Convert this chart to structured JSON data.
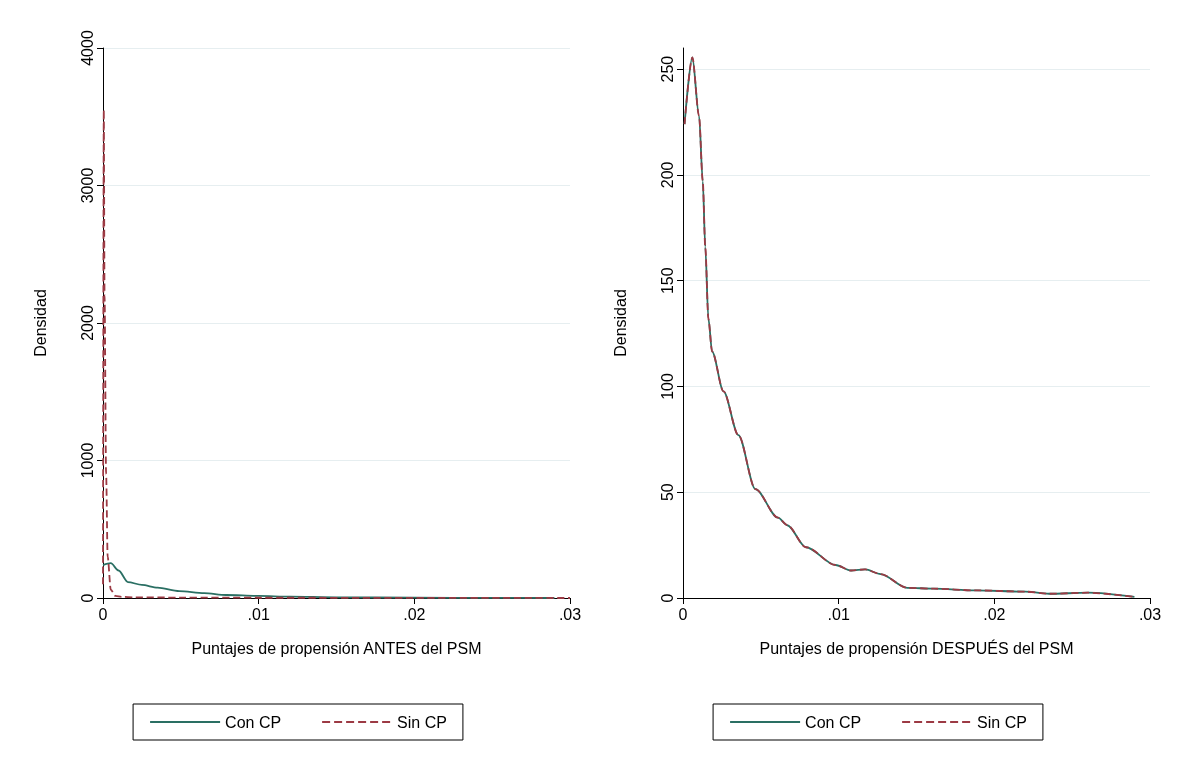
{
  "chart_data": [
    {
      "type": "line",
      "xlabel": "Puntajes de propensión ANTES del PSM",
      "ylabel": "Densidad",
      "xlim": [
        0,
        0.03
      ],
      "xticks": [
        {
          "value": 0,
          "label": "0"
        },
        {
          "value": 0.01,
          "label": ".01"
        },
        {
          "value": 0.02,
          "label": ".02"
        },
        {
          "value": 0.03,
          "label": ".03"
        }
      ],
      "ylim": [
        0,
        4000
      ],
      "yticks": [
        0,
        1000,
        2000,
        3000,
        4000
      ],
      "grid": "y",
      "legend": "bottom",
      "series": [
        {
          "name": "Con CP",
          "color": "#2a6f63",
          "line_style": "solid",
          "x": [
            0,
            0.0005,
            0.001,
            0.0016,
            0.0025,
            0.0035,
            0.0049,
            0.0065,
            0.0079,
            0.01,
            0.012,
            0.015,
            0.02,
            0.025,
            0.029
          ],
          "values": [
            239,
            253,
            200,
            116,
            95,
            75,
            50,
            35,
            22,
            15,
            10,
            5,
            2,
            1,
            0
          ]
        },
        {
          "name": "Sin CP",
          "color": "#9c3a44",
          "line_style": "dashed",
          "x": [
            0,
            5e-05,
            0.0001,
            0.0002,
            0.0003,
            0.0005,
            0.0008,
            0.0012,
            0.002,
            0.005,
            0.01,
            0.02,
            0.03
          ],
          "values": [
            100,
            3550,
            2200,
            900,
            300,
            60,
            15,
            8,
            5,
            3,
            2,
            1,
            0
          ]
        }
      ]
    },
    {
      "type": "line",
      "xlabel": "Puntajes de propensión DESPUÉS del PSM",
      "ylabel": "Densidad",
      "xlim": [
        0,
        0.03
      ],
      "xticks": [
        {
          "value": 0,
          "label": "0"
        },
        {
          "value": 0.01,
          "label": ".01"
        },
        {
          "value": 0.02,
          "label": ".02"
        },
        {
          "value": 0.03,
          "label": ".03"
        }
      ],
      "ylim": [
        0,
        260
      ],
      "yticks": [
        0,
        50,
        100,
        150,
        200,
        250
      ],
      "grid": "y",
      "legend": "bottom",
      "series": [
        {
          "name": "Con CP",
          "color": "#2a6f63",
          "line_style": "solid",
          "x": [
            0.0001,
            0.0006,
            0.00103,
            0.00127,
            0.00143,
            0.00163,
            0.00187,
            0.0026,
            0.00356,
            0.00465,
            0.0061,
            0.0067,
            0.0079,
            0.0098,
            0.0108,
            0.0117,
            0.0127,
            0.0144,
            0.0161,
            0.0188,
            0.022,
            0.0235,
            0.026,
            0.029
          ],
          "values": [
            224,
            255.5,
            228,
            197,
            166,
            132,
            116.5,
            97.7,
            77,
            51.5,
            38,
            34.4,
            24,
            15.6,
            13,
            13.5,
            11.3,
            4.8,
            4.4,
            3.6,
            3,
            2,
            2.5,
            0.5
          ]
        },
        {
          "name": "Sin CP",
          "color": "#9c3a44",
          "line_style": "dashed",
          "x": [
            0.0001,
            0.0006,
            0.00103,
            0.00127,
            0.00143,
            0.00163,
            0.00187,
            0.0026,
            0.00356,
            0.00465,
            0.0061,
            0.0067,
            0.0079,
            0.0098,
            0.0108,
            0.0117,
            0.0127,
            0.0144,
            0.0161,
            0.0188,
            0.022,
            0.0235,
            0.026,
            0.029
          ],
          "values": [
            224,
            255.5,
            228,
            197,
            166,
            132,
            116.5,
            97.7,
            77,
            51.5,
            38,
            34.4,
            24,
            15.6,
            13,
            13.5,
            11.3,
            4.8,
            4.4,
            3.6,
            3,
            2,
            2.5,
            0.5
          ]
        }
      ]
    }
  ]
}
